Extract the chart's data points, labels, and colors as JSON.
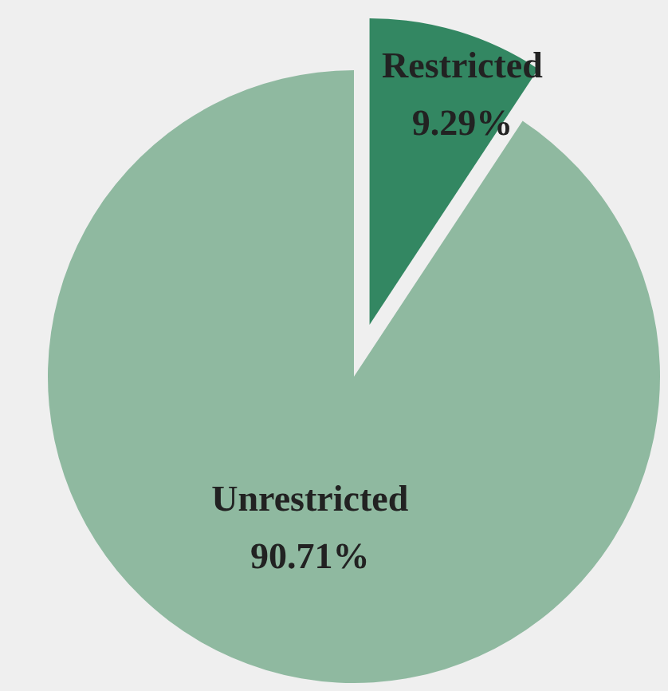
{
  "chart_data": {
    "type": "pie",
    "categories": [
      "Restricted",
      "Unrestricted"
    ],
    "values": [
      9.29,
      90.71
    ],
    "colors": [
      "#338762",
      "#8fb9a0"
    ],
    "value_labels": [
      "9.29%",
      "90.71%"
    ],
    "legend": false
  }
}
